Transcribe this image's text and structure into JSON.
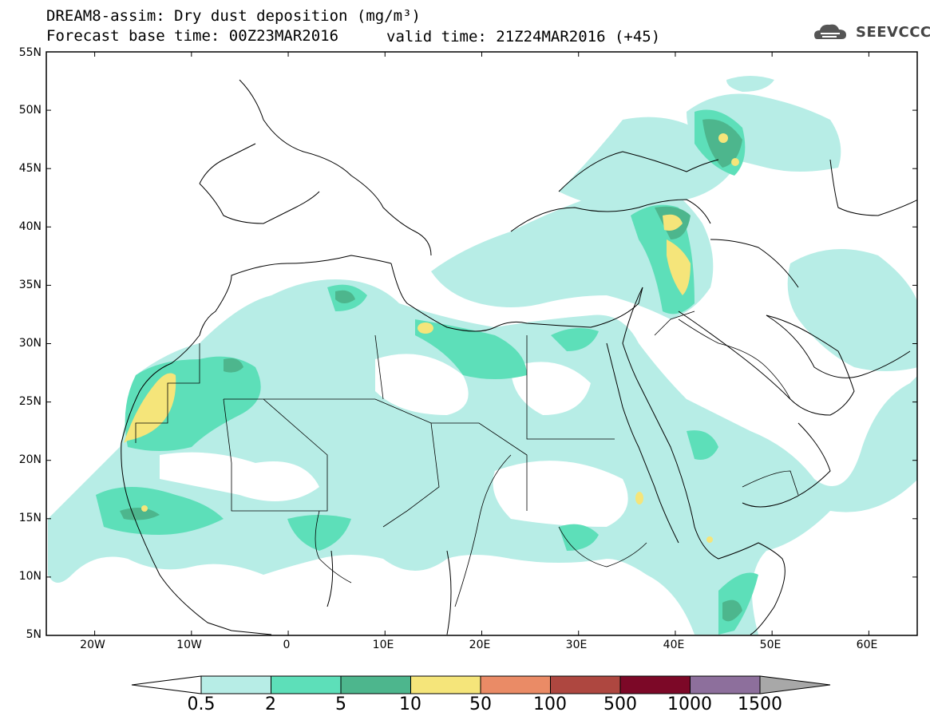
{
  "header": {
    "title_line1": "DREAM8-assim: Dry dust deposition (mg/m³)",
    "title_line2": "Forecast base time: 00Z23MAR2016",
    "valid_time": "valid time: 21Z24MAR2016 (+45)",
    "logo_text": "SEEVCCC",
    "logo_icon": "cloud-logo-icon"
  },
  "map": {
    "lat_labels": [
      "55N",
      "50N",
      "45N",
      "40N",
      "35N",
      "30N",
      "25N",
      "20N",
      "15N",
      "10N",
      "5N"
    ],
    "lon_labels": [
      "20W",
      "10W",
      "0",
      "10E",
      "20E",
      "30E",
      "40E",
      "50E",
      "60E"
    ],
    "lon_range": [
      -25,
      65
    ],
    "lat_range": [
      5,
      55
    ]
  },
  "legend": {
    "levels": [
      "0.5",
      "2",
      "5",
      "10",
      "50",
      "100",
      "500",
      "1000",
      "1500"
    ],
    "colors": [
      "#ffffff",
      "#b7ede6",
      "#5ddfb9",
      "#4db68d",
      "#f5e57a",
      "#ea8b66",
      "#ae4740",
      "#7c0827",
      "#8d6f9c",
      "#a8a8a8"
    ]
  }
}
